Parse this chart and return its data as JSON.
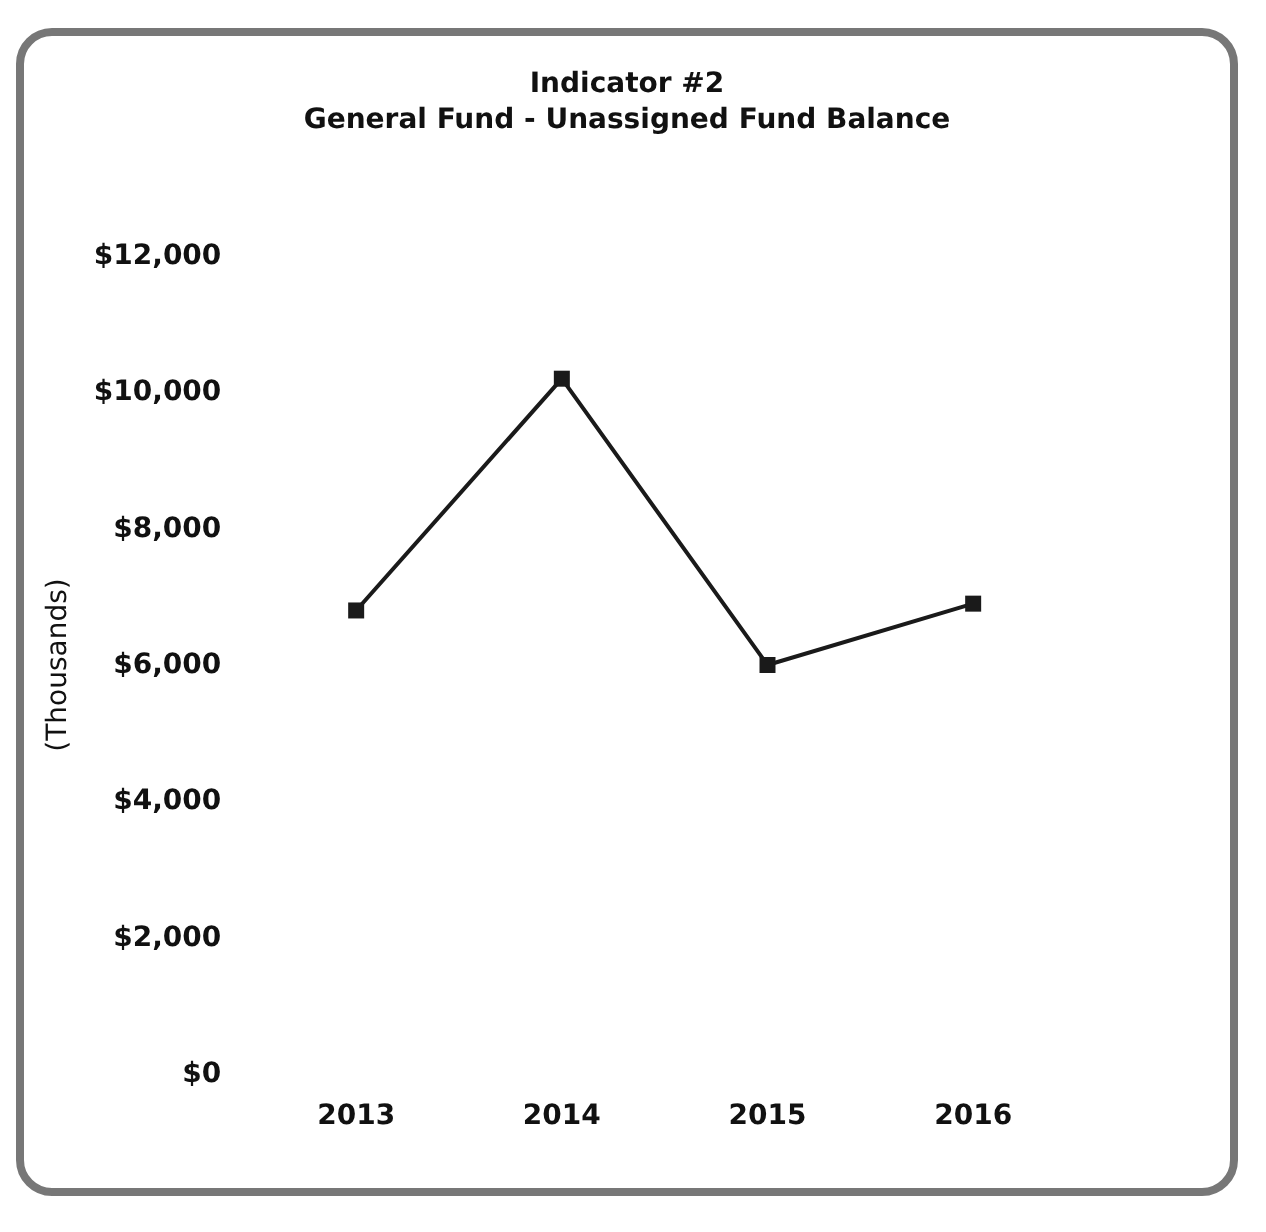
{
  "chart_data": {
    "type": "line",
    "title": "Indicator #2",
    "subtitle": "General Fund - Unassigned Fund Balance",
    "ylabel": "(Thousands)",
    "categories": [
      "2013",
      "2014",
      "2015",
      "2016"
    ],
    "series": [
      {
        "color": "#1a1a1a",
        "values": [
          6800,
          10200,
          6000,
          6900
        ]
      }
    ],
    "ylim": [
      0,
      12000
    ],
    "yticks": [
      {
        "value": 0,
        "label": "$0"
      },
      {
        "value": 2000,
        "label": "$2,000"
      },
      {
        "value": 4000,
        "label": "$4,000"
      },
      {
        "value": 6000,
        "label": "$6,000"
      },
      {
        "value": 8000,
        "label": "$8,000"
      },
      {
        "value": 10000,
        "label": "$10,000"
      },
      {
        "value": 12000,
        "label": "$12,000"
      }
    ],
    "grid": false,
    "marker": "square",
    "line_style": "solid"
  }
}
